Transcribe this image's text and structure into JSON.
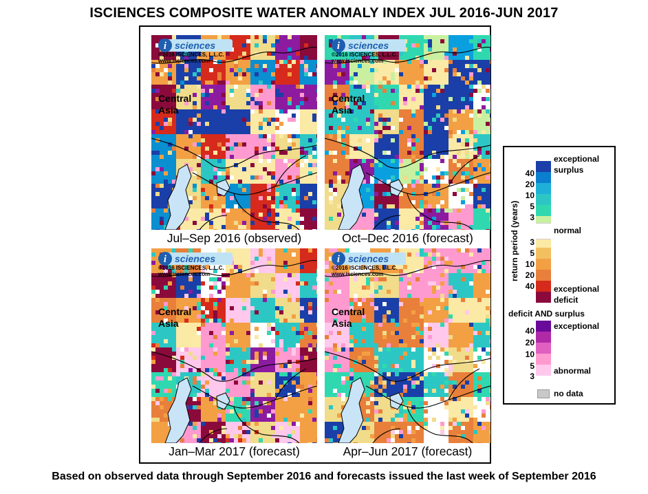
{
  "title": "ISCIENCES COMPOSITE WATER ANOMALY INDEX JUL 2016-JUN 2017",
  "footer": "Based on observed data through September 2016 and forecasts issued the last week of September 2016",
  "logo": {
    "mark": "i",
    "word": "sciences",
    "copyright": "©2016  ISCIENCES, L.L.C.",
    "url": "www.isciences.com"
  },
  "region_label": [
    "Central",
    "Asia"
  ],
  "panels": [
    {
      "caption": "Jul–Sep 2016 (observed)",
      "palette": [
        "#8b0a3c",
        "#8b0a3c",
        "#8c1ba0",
        "#1a3fa8",
        "#1a3fa8",
        "#f3a044",
        "#f0dc8a",
        "#fbe9a6",
        "#e87f3a",
        "#0a8fd0",
        "#2cc7c4",
        "#ff9ad0",
        "#ffffff",
        "#d62a1c"
      ]
    },
    {
      "caption": "Oct–Dec 2016 (forecast)",
      "palette": [
        "#30d8b0",
        "#0aa0e0",
        "#1a3fa8",
        "#f3a044",
        "#f0dc8a",
        "#fbe9a6",
        "#ff9ad0",
        "#8c1ba0",
        "#8b0a3c",
        "#e87f3a",
        "#2cc7c4",
        "#ffffff",
        "#c8f0a0"
      ]
    },
    {
      "caption": "Jan–Mar 2017 (forecast)",
      "palette": [
        "#f3a044",
        "#f3a044",
        "#fbe9a6",
        "#f0dc8a",
        "#e87f3a",
        "#ff9ad0",
        "#ffc8ec",
        "#8c1ba0",
        "#1a3fa8",
        "#2cc7c4",
        "#30d8b0",
        "#8b0a3c",
        "#ffffff",
        "#d62a1c"
      ]
    },
    {
      "caption": "Apr–Jun 2017 (forecast)",
      "palette": [
        "#f3a044",
        "#f3a044",
        "#f3a044",
        "#fbe9a6",
        "#f0dc8a",
        "#e87f3a",
        "#e87f3a",
        "#ffc8ec",
        "#2cc7c4",
        "#30d8b0",
        "#1a3fa8",
        "#ffffff",
        "#ff9ad0"
      ]
    }
  ],
  "legend": {
    "axis_label": "return period (years)",
    "surplus_top": "exceptional",
    "surplus_bottom": "surplus",
    "normal": "normal",
    "deficit_top": "exceptional",
    "deficit_bottom": "deficit",
    "both_header": "deficit AND surplus",
    "both_top": "exceptional",
    "both_bottom": "abnormal",
    "no_data": "no data",
    "surplus_colors": [
      "#1a3fa8",
      "#0a7fd0",
      "#1fb0d8",
      "#2cc7c4",
      "#30d8b0",
      "#c8f0a0"
    ],
    "normal_color": "#ffffff",
    "deficit_colors": [
      "#fbe9a6",
      "#f3c060",
      "#f3a044",
      "#e87f3a",
      "#d62a1c",
      "#8b0a3c"
    ],
    "both_colors": [
      "#6a0a9a",
      "#b02aa8",
      "#e060c0",
      "#ff9ad0",
      "#ffc8ec"
    ],
    "no_data_color": "#c8c8c8",
    "surplus_ticks": [
      "40",
      "20",
      "10",
      "5",
      "3"
    ],
    "deficit_ticks": [
      "3",
      "5",
      "10",
      "20",
      "40"
    ],
    "both_ticks": [
      "40",
      "20",
      "10",
      "5",
      "3"
    ]
  }
}
